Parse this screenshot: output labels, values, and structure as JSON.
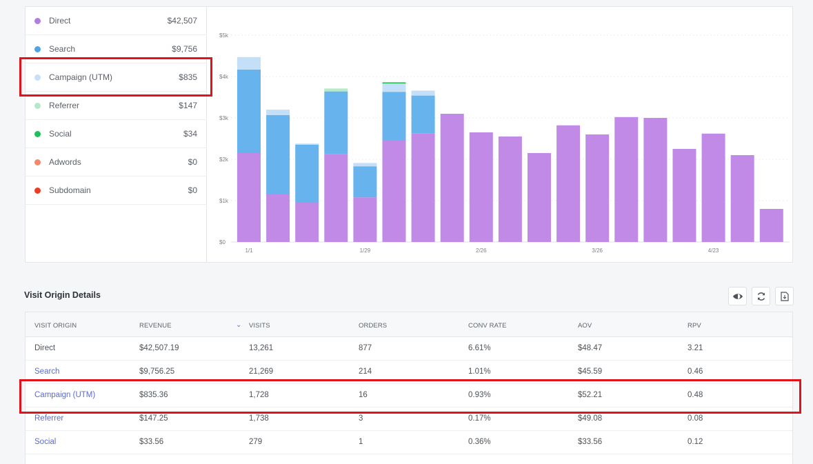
{
  "legend": [
    {
      "label": "Direct",
      "value": "$42,507",
      "color": "#b07ee0"
    },
    {
      "label": "Search",
      "value": "$9,756",
      "color": "#4fa3e8"
    },
    {
      "label": "Campaign (UTM)",
      "value": "$835",
      "color": "#c7e0f7"
    },
    {
      "label": "Referrer",
      "value": "$147",
      "color": "#b5e8c8"
    },
    {
      "label": "Social",
      "value": "$34",
      "color": "#1fbf5a"
    },
    {
      "label": "Adwords",
      "value": "$0",
      "color": "#f08a6a"
    },
    {
      "label": "Subdomain",
      "value": "$0",
      "color": "#ee3b24"
    }
  ],
  "chart_data": {
    "type": "bar",
    "stacked": true,
    "y_ticks": [
      "$0",
      "$1k",
      "$2k",
      "$3k",
      "$4k",
      "$5k"
    ],
    "ylim": [
      0,
      5000
    ],
    "x_tick_labels": {
      "0": "1/1",
      "4": "1/29",
      "8": "2/26",
      "12": "3/26",
      "16": "4/23"
    },
    "series": [
      {
        "name": "Direct",
        "color": "#c08ae6",
        "values": [
          2150,
          1150,
          950,
          2120,
          1080,
          2450,
          2620,
          3100,
          2650,
          2550,
          2150,
          2820,
          2600,
          3020,
          3000,
          2250,
          2620,
          2100,
          800
        ]
      },
      {
        "name": "Search",
        "color": "#67b3ee",
        "values": [
          2020,
          1920,
          1400,
          1520,
          750,
          1180,
          920,
          0,
          0,
          0,
          0,
          0,
          0,
          0,
          0,
          0,
          0,
          0,
          0
        ]
      },
      {
        "name": "Campaign (UTM)",
        "color": "#c4e0f8",
        "values": [
          300,
          130,
          30,
          0,
          80,
          200,
          120,
          0,
          0,
          0,
          0,
          0,
          0,
          0,
          0,
          0,
          0,
          0,
          0
        ]
      },
      {
        "name": "Referrer",
        "color": "#b5ebc7",
        "values": [
          0,
          0,
          0,
          70,
          0,
          0,
          0,
          0,
          0,
          0,
          0,
          0,
          0,
          0,
          0,
          0,
          0,
          0,
          0
        ]
      },
      {
        "name": "Social",
        "color": "#2fbf5a",
        "values": [
          0,
          0,
          0,
          0,
          0,
          30,
          0,
          0,
          0,
          0,
          0,
          0,
          0,
          0,
          0,
          0,
          0,
          0,
          0
        ]
      }
    ]
  },
  "details": {
    "title": "Visit Origin Details",
    "columns": [
      "VISIT ORIGIN",
      "REVENUE",
      "VISITS",
      "ORDERS",
      "CONV RATE",
      "AOV",
      "RPV"
    ],
    "sort_indicator": "⌄",
    "rows": [
      [
        "Direct",
        "$42,507.19",
        "13,261",
        "877",
        "6.61%",
        "$48.47",
        "3.21"
      ],
      [
        "Search",
        "$9,756.25",
        "21,269",
        "214",
        "1.01%",
        "$45.59",
        "0.46"
      ],
      [
        "Campaign (UTM)",
        "$835.36",
        "1,728",
        "16",
        "0.93%",
        "$52.21",
        "0.48"
      ],
      [
        "Referrer",
        "$147.25",
        "1,738",
        "3",
        "0.17%",
        "$49.08",
        "0.08"
      ],
      [
        "Social",
        "$33.56",
        "279",
        "1",
        "0.36%",
        "$33.56",
        "0.12"
      ]
    ],
    "toolbar_icons": [
      "eye-icon",
      "refresh-icon",
      "export-icon"
    ]
  }
}
